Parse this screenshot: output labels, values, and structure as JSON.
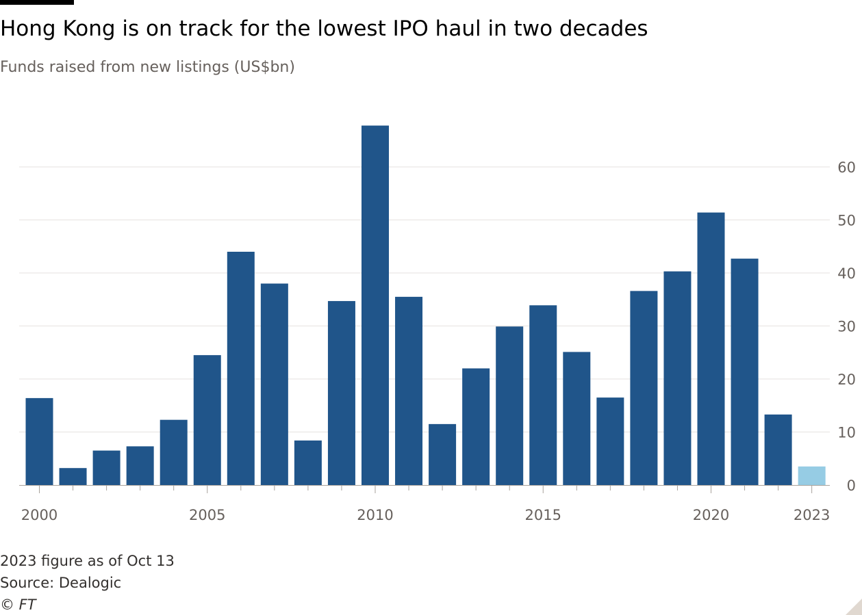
{
  "header": {
    "title": "Hong Kong is on track for the lowest IPO haul in two decades",
    "subtitle": "Funds raised from new listings (US$bn)"
  },
  "footer": {
    "note": "2023 figure as of Oct 13",
    "source": "Source: Dealogic",
    "copyright": "© FT"
  },
  "colors": {
    "bar": "#20558a",
    "highlight": "#96cce4",
    "grid": "#e6e2df",
    "axis_text": "#66605c"
  },
  "chart_data": {
    "type": "bar",
    "title": "Hong Kong is on track for the lowest IPO haul in two decades",
    "subtitle": "Funds raised from new listings (US$bn)",
    "categories": [
      "2000",
      "2001",
      "2002",
      "2003",
      "2004",
      "2005",
      "2006",
      "2007",
      "2008",
      "2009",
      "2010",
      "2011",
      "2012",
      "2013",
      "2014",
      "2015",
      "2016",
      "2017",
      "2018",
      "2019",
      "2020",
      "2021",
      "2022",
      "2023"
    ],
    "values": [
      16.4,
      3.2,
      6.5,
      7.3,
      12.3,
      24.5,
      44.0,
      38.0,
      8.4,
      34.7,
      67.8,
      35.5,
      11.5,
      22.0,
      29.9,
      33.9,
      25.1,
      16.5,
      36.6,
      40.3,
      51.4,
      42.7,
      13.3,
      3.5
    ],
    "highlight_categories": [
      "2023"
    ],
    "x_tick_labels": [
      "2000",
      "2005",
      "2010",
      "2015",
      "2020",
      "2023"
    ],
    "y_ticks": [
      0,
      10,
      20,
      30,
      40,
      50,
      60
    ],
    "ylim": [
      0,
      70
    ],
    "ylabel": "",
    "xlabel": "",
    "y_axis_side": "right",
    "grid": true
  }
}
